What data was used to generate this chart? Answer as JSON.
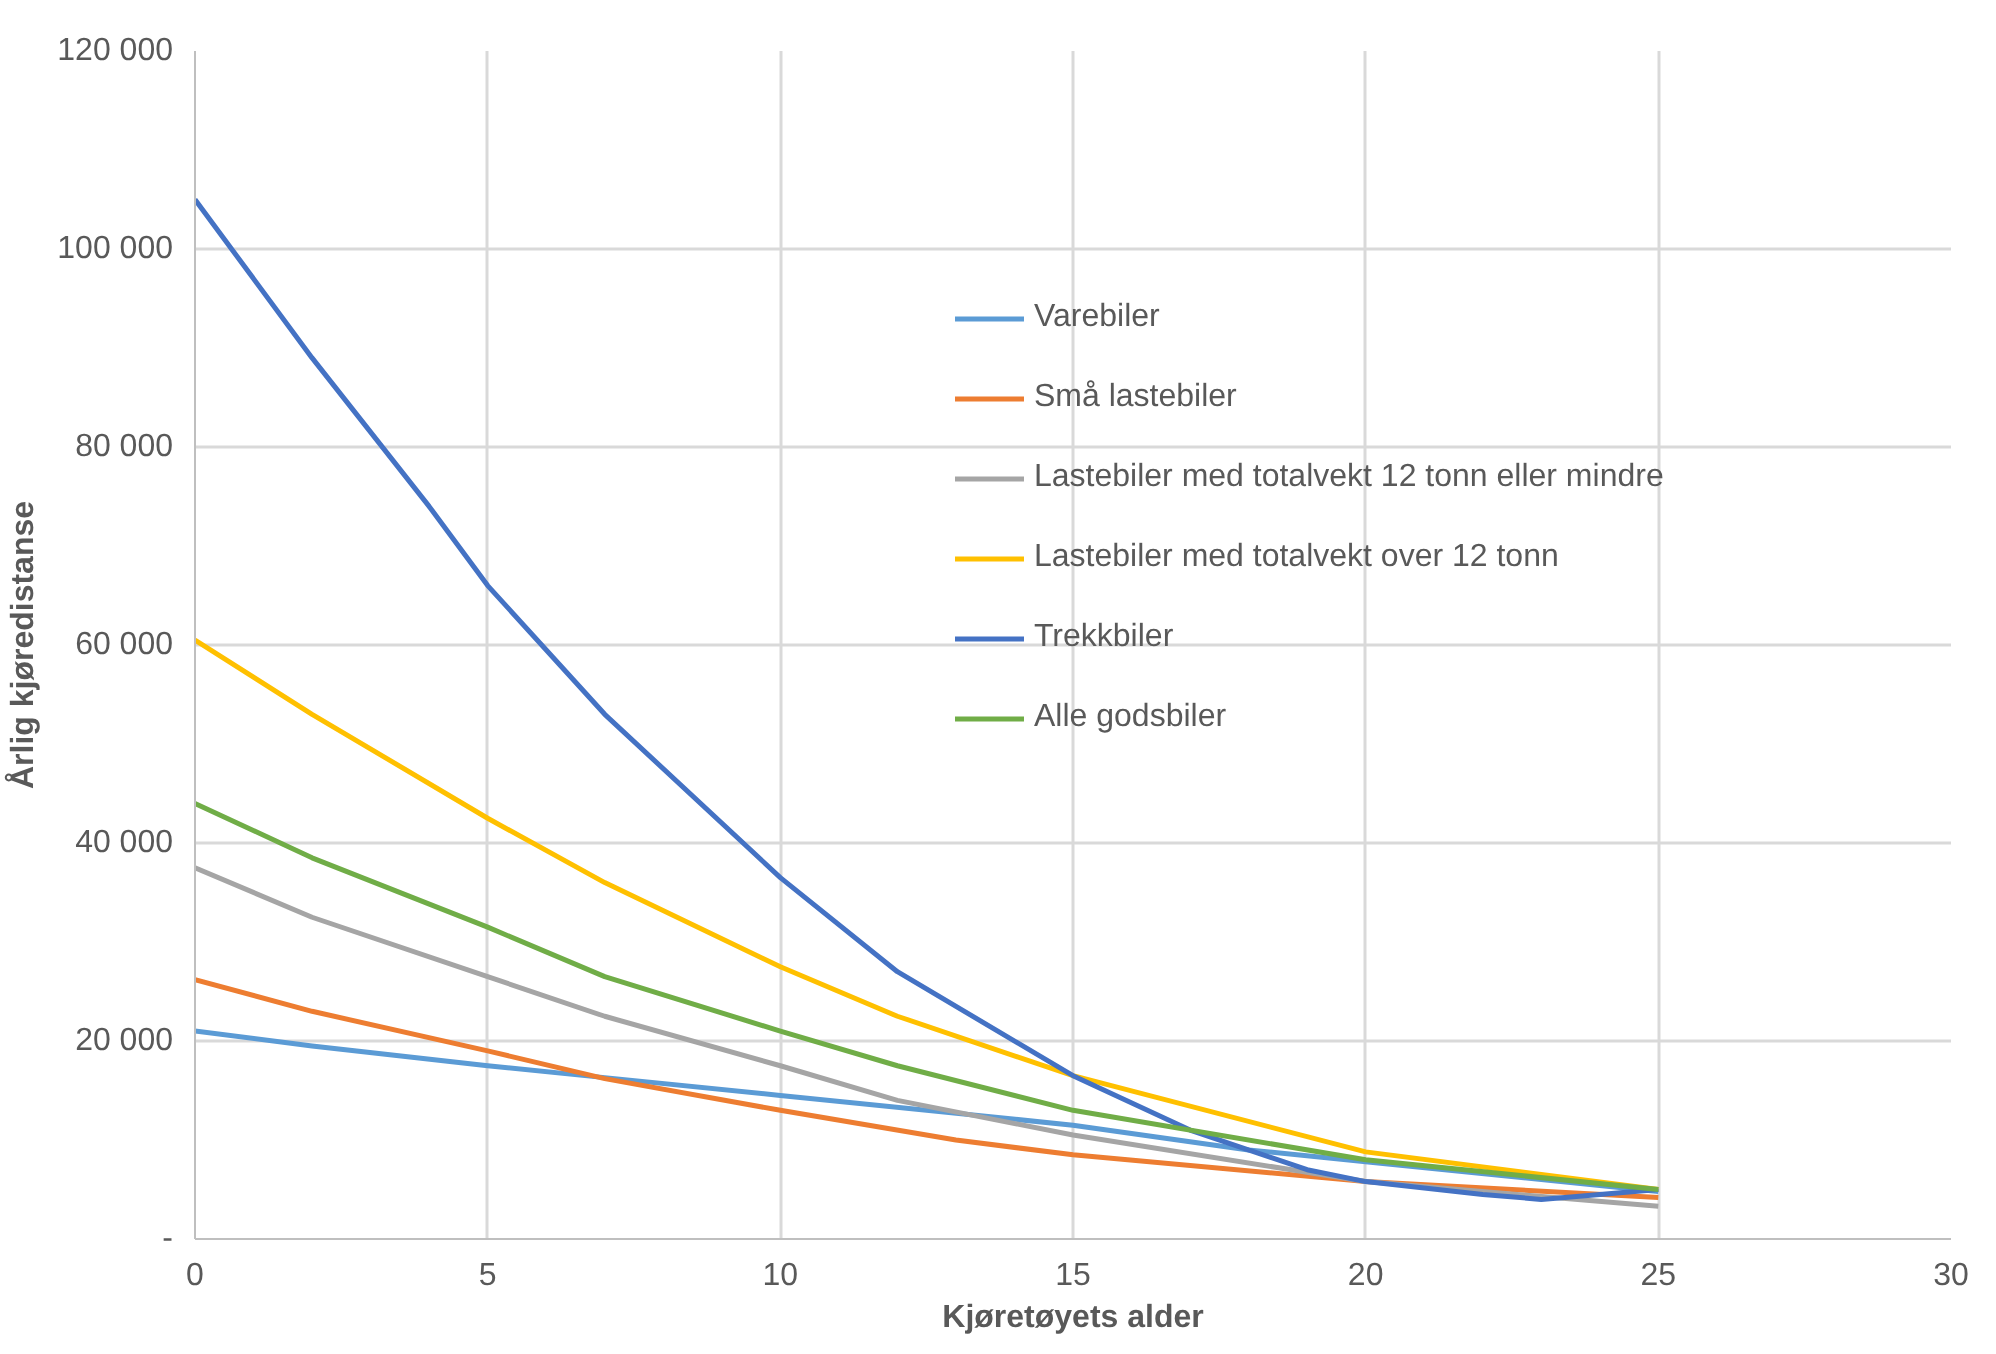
{
  "chart_data": {
    "type": "line",
    "xlabel": "Kjøretøyets alder",
    "ylabel": "Årlig kjøredistanse",
    "xlim": [
      0,
      30
    ],
    "xticks": [
      0,
      5,
      10,
      15,
      20,
      25,
      30
    ],
    "ylim": [
      0,
      120000
    ],
    "yticks": [
      {
        "value": 0,
        "label": "-"
      },
      {
        "value": 20000,
        "label": "20 000"
      },
      {
        "value": 40000,
        "label": "40 000"
      },
      {
        "value": 60000,
        "label": "60 000"
      },
      {
        "value": 80000,
        "label": "80 000"
      },
      {
        "value": 100000,
        "label": "100 000"
      },
      {
        "value": 120000,
        "label": "120 000"
      }
    ],
    "grid": true,
    "legend": "top",
    "marker": "none",
    "line_style": "solid",
    "series": [
      {
        "name": "Varebiler",
        "color": "#5b9bd5",
        "x": [
          0,
          2,
          5,
          7,
          10,
          15,
          18,
          20,
          25
        ],
        "values": [
          21000,
          19500,
          17500,
          16300,
          14500,
          11500,
          9000,
          7800,
          4800
        ]
      },
      {
        "name": "Små lastebiler",
        "color": "#ed7d31",
        "x": [
          0,
          2,
          5,
          7,
          10,
          13,
          15,
          20,
          25
        ],
        "values": [
          26200,
          23000,
          19000,
          16200,
          13000,
          10000,
          8500,
          5800,
          4200
        ]
      },
      {
        "name": "Lastebiler med totalvekt 12 tonn eller mindre",
        "color": "#a5a5a5",
        "x": [
          0,
          2,
          5,
          7,
          10,
          12,
          15,
          20,
          25
        ],
        "values": [
          37500,
          32500,
          26500,
          22500,
          17500,
          14000,
          10500,
          5800,
          3300
        ]
      },
      {
        "name": "Lastebiler med totalvekt over 12 tonn",
        "color": "#ffc000",
        "x": [
          0,
          2,
          5,
          7,
          10,
          12,
          15,
          20,
          25
        ],
        "values": [
          60500,
          53000,
          42500,
          36000,
          27500,
          22500,
          16500,
          8800,
          5000
        ]
      },
      {
        "name": "Trekkbiler",
        "color": "#4472c4",
        "x": [
          0,
          2,
          4,
          5,
          7,
          10,
          12,
          15,
          17,
          19,
          20,
          22,
          23,
          25
        ],
        "values": [
          105000,
          89000,
          74000,
          66000,
          53000,
          36500,
          27000,
          16500,
          11000,
          7000,
          5800,
          4500,
          4000,
          5000
        ]
      },
      {
        "name": "Alle godsbiler",
        "color": "#70ad47",
        "x": [
          0,
          2,
          5,
          7,
          10,
          12,
          15,
          20,
          25
        ],
        "values": [
          44000,
          38500,
          31500,
          26500,
          21000,
          17500,
          13000,
          8000,
          5000
        ]
      }
    ]
  }
}
